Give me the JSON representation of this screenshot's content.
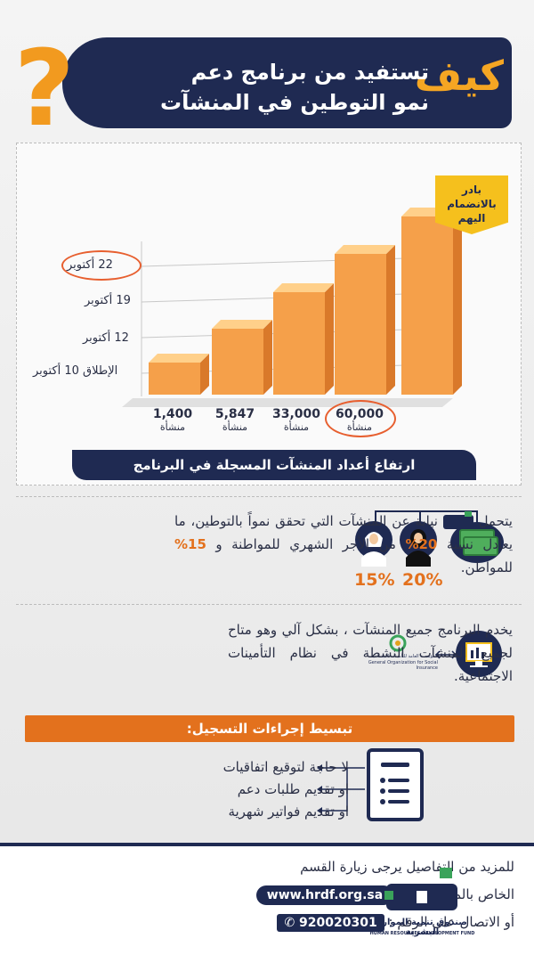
{
  "header": {
    "kaif": "كيف",
    "title_line1": "تستفيد من برنامج دعم",
    "title_line2": "نمو التوطين في المنشآت"
  },
  "chart_data": {
    "type": "bar",
    "categories": [
      "الإطلاق 10 أكتوبر",
      "12 أكتوبر",
      "19 أكتوبر",
      "22 أكتوبر"
    ],
    "values": [
      1400,
      5847,
      33000,
      60000
    ],
    "value_labels": [
      "1,400",
      "5,847",
      "33,000",
      "60,000"
    ],
    "unit_label": "منشأة",
    "y_labels": [
      "22 أكتوبر",
      "19 أكتوبر",
      "12 أكتوبر",
      "الإطلاق 10 أكتوبر"
    ],
    "caption": "ارتفاع أعداد المنشآت المسجلة في البرنامج",
    "cta": "بادر بالانضمام اليهم",
    "colors": {
      "bar": "#f5a04a",
      "bar_side": "#d9792a",
      "bar_top": "#ffd08a"
    }
  },
  "section1": {
    "text_before_logo": "يتحمل",
    "text_main": "نيابة عن المنشآت التي تحقق نمواً بالتوطين، ما يعادل نسبة",
    "pct_women": "20%",
    "text_middle": "من الأجر الشهري للمواطنة و",
    "pct_men": "15%",
    "text_end": "للمواطن.",
    "label_women": "20%",
    "label_men": "15%",
    "icons": [
      "money-icon",
      "woman-icon",
      "man-icon"
    ]
  },
  "section2": {
    "text": "يخدم البرنامج جميع المنشآت ، بشكل آلي وهو متاح لجميع المنشآت النشطة في نظام التأمينات الاجتماعية.",
    "gosi_ar": "المؤسسة العامة للتأمينات الاجتماعية",
    "gosi_en": "General Organization for Social Insurance"
  },
  "steps": {
    "title": "تبسيط إجراءات التسجيل:",
    "items": [
      "لا حاجة لتوقيع اتفاقيات",
      "او تقديم طلبات دعم",
      "او تقديم فواتير شهرية"
    ]
  },
  "footer": {
    "line1": "للمزيد من التفاصيل يرجى زيارة القسم",
    "line2_text": "الخاص بالمنشآت عبر",
    "url": "www.hrdf.org.sa",
    "line3_text": "أو الاتصال على الرقم :",
    "phone": "920020301",
    "org_ar": "صندوق تنمية الموارد البشرية",
    "org_en": "HUMAN RESOURCES DEVELOPMENT FUND"
  }
}
